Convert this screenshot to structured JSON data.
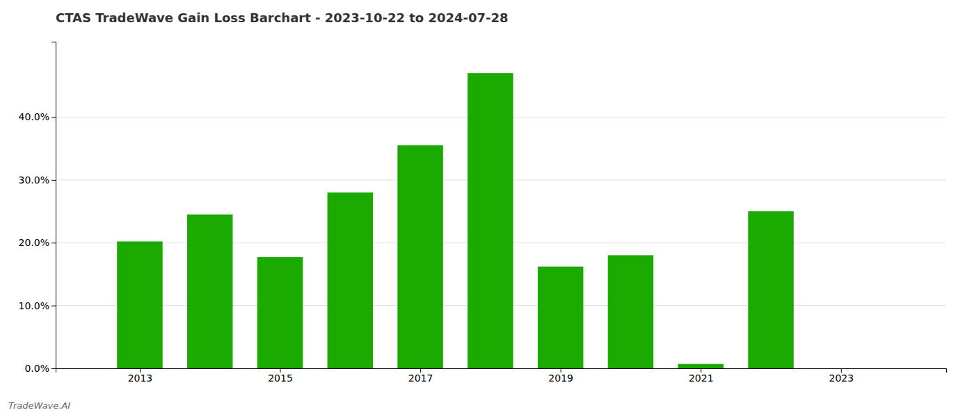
{
  "chart_data": {
    "type": "bar",
    "title": "CTAS TradeWave Gain Loss Barchart - 2023-10-22 to 2024-07-28",
    "annotations": [
      "TradeWave.AI"
    ],
    "x": [
      2013,
      2014,
      2015,
      2016,
      2017,
      2018,
      2019,
      2020,
      2021,
      2022,
      2023
    ],
    "values": [
      0.202,
      0.245,
      0.177,
      0.28,
      0.355,
      0.47,
      0.162,
      0.18,
      0.007,
      0.25,
      0.0
    ],
    "color": "#1aaa00",
    "xlim": [
      2011.8,
      2024.5
    ],
    "xticks": [
      2013,
      2015,
      2017,
      2019,
      2021,
      2023
    ],
    "ylim": [
      0,
      0.52
    ],
    "yticks": [
      {
        "value": 0.0,
        "label": "0.0%"
      },
      {
        "value": 0.1,
        "label": "10.0%"
      },
      {
        "value": 0.2,
        "label": "20.0%"
      },
      {
        "value": 0.3,
        "label": "30.0%"
      },
      {
        "value": 0.4,
        "label": "40.0%"
      }
    ],
    "grid": true
  }
}
